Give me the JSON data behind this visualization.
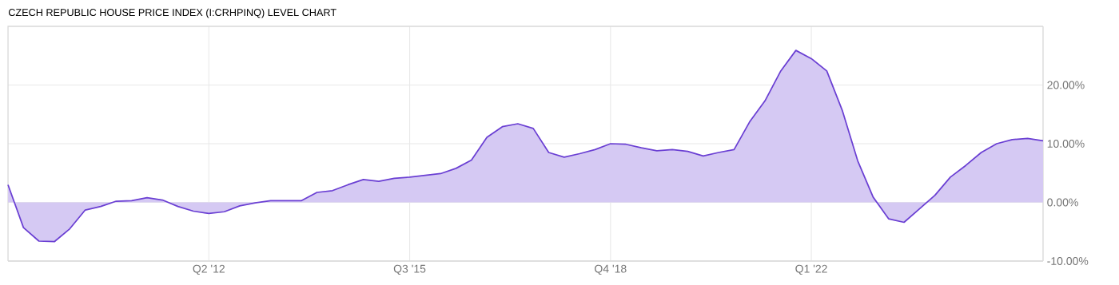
{
  "chart_data": {
    "type": "area",
    "title": "CZECH REPUBLIC HOUSE PRICE INDEX (I:CRHPINQ) LEVEL CHART",
    "x": [
      "2009-01",
      "2009-04",
      "2009-07",
      "2009-10",
      "2010-01",
      "2010-04",
      "2010-07",
      "2010-10",
      "2011-01",
      "2011-04",
      "2011-07",
      "2011-10",
      "2012-01",
      "2012-04",
      "2012-07",
      "2012-10",
      "2013-01",
      "2013-04",
      "2013-07",
      "2013-10",
      "2014-01",
      "2014-04",
      "2014-07",
      "2014-10",
      "2015-01",
      "2015-04",
      "2015-07",
      "2015-10",
      "2016-01",
      "2016-04",
      "2016-07",
      "2016-10",
      "2017-01",
      "2017-04",
      "2017-07",
      "2017-10",
      "2018-01",
      "2018-04",
      "2018-07",
      "2018-10",
      "2019-01",
      "2019-04",
      "2019-07",
      "2019-10",
      "2020-01",
      "2020-04",
      "2020-07",
      "2020-10",
      "2021-01",
      "2021-04",
      "2021-07",
      "2021-10",
      "2022-01",
      "2022-04",
      "2022-07",
      "2022-10",
      "2023-01",
      "2023-04",
      "2023-07",
      "2023-10",
      "2024-01",
      "2024-04",
      "2024-07",
      "2024-10",
      "2025-01",
      "2025-04",
      "2025-07",
      "2025-10"
    ],
    "values": [
      3.0,
      -4.3,
      -6.6,
      -6.7,
      -4.5,
      -1.3,
      -0.7,
      0.2,
      0.3,
      0.8,
      0.4,
      -0.7,
      -1.5,
      -1.9,
      -1.6,
      -0.6,
      -0.1,
      0.3,
      0.3,
      0.3,
      1.7,
      2.0,
      3.0,
      3.9,
      3.6,
      4.1,
      4.3,
      4.6,
      4.9,
      5.8,
      7.2,
      11.1,
      12.9,
      13.4,
      12.6,
      8.5,
      7.7,
      8.3,
      9.0,
      10.0,
      9.9,
      9.3,
      8.8,
      9.0,
      8.7,
      7.9,
      8.5,
      9.0,
      13.7,
      17.3,
      22.3,
      25.9,
      24.5,
      22.4,
      15.7,
      7.1,
      0.9,
      -2.8,
      -3.4,
      -1.1,
      1.2,
      4.3,
      6.3,
      8.5,
      10.0,
      10.7,
      10.9,
      10.5
    ],
    "color": "#6a3fd3",
    "xlim": [
      "2009-01",
      "2025-10"
    ],
    "xticks": [
      {
        "value": "2012-04",
        "label": "Q2 '12"
      },
      {
        "value": "2015-07",
        "label": "Q3 '15"
      },
      {
        "value": "2018-10",
        "label": "Q4 '18"
      },
      {
        "value": "2022-01",
        "label": "Q1 '22"
      }
    ],
    "ylim": [
      -10,
      30
    ],
    "yticks": [
      {
        "value": -10,
        "label": "-10.00%"
      },
      {
        "value": 0,
        "label": "0.00%"
      },
      {
        "value": 10,
        "label": "10.00%"
      },
      {
        "value": 20,
        "label": "20.00%"
      }
    ],
    "grid": true
  }
}
